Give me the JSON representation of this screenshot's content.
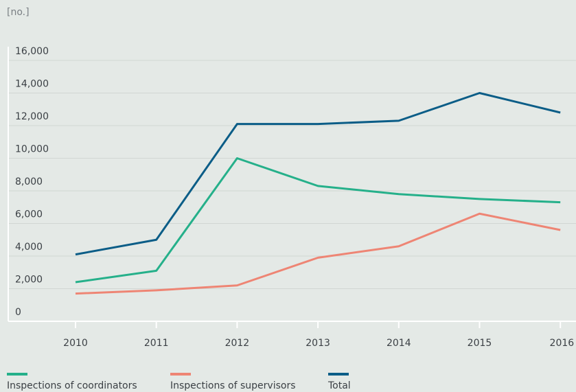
{
  "chart_data": {
    "type": "line",
    "unit_label": "[no.]",
    "categories": [
      "2010",
      "2011",
      "2012",
      "2013",
      "2014",
      "2015",
      "2016"
    ],
    "series": [
      {
        "name": "Inspections of coordinators",
        "color": "#25b08a",
        "values": [
          2400,
          3100,
          10000,
          8300,
          7800,
          7500,
          7300
        ]
      },
      {
        "name": "Inspections of supervisors",
        "color": "#ee8574",
        "values": [
          1700,
          1900,
          2200,
          3900,
          4600,
          6600,
          5600
        ]
      },
      {
        "name": "Total",
        "color": "#0b5d87",
        "values": [
          4100,
          5000,
          12100,
          12100,
          12300,
          14000,
          12800
        ]
      }
    ],
    "ylim": [
      0,
      16000
    ],
    "yticks": [
      0,
      {
        "value": 2000,
        "label": "2,000"
      },
      {
        "value": 4000,
        "label": "4,000"
      },
      {
        "value": 6000,
        "label": "6,000"
      },
      {
        "value": 8000,
        "label": "8,000"
      },
      {
        "value": 10000,
        "label": "10,000"
      },
      {
        "value": 12000,
        "label": "12,000"
      },
      {
        "value": 14000,
        "label": "14,000"
      },
      {
        "value": 16000,
        "label": "16,000"
      }
    ],
    "grid": true
  }
}
